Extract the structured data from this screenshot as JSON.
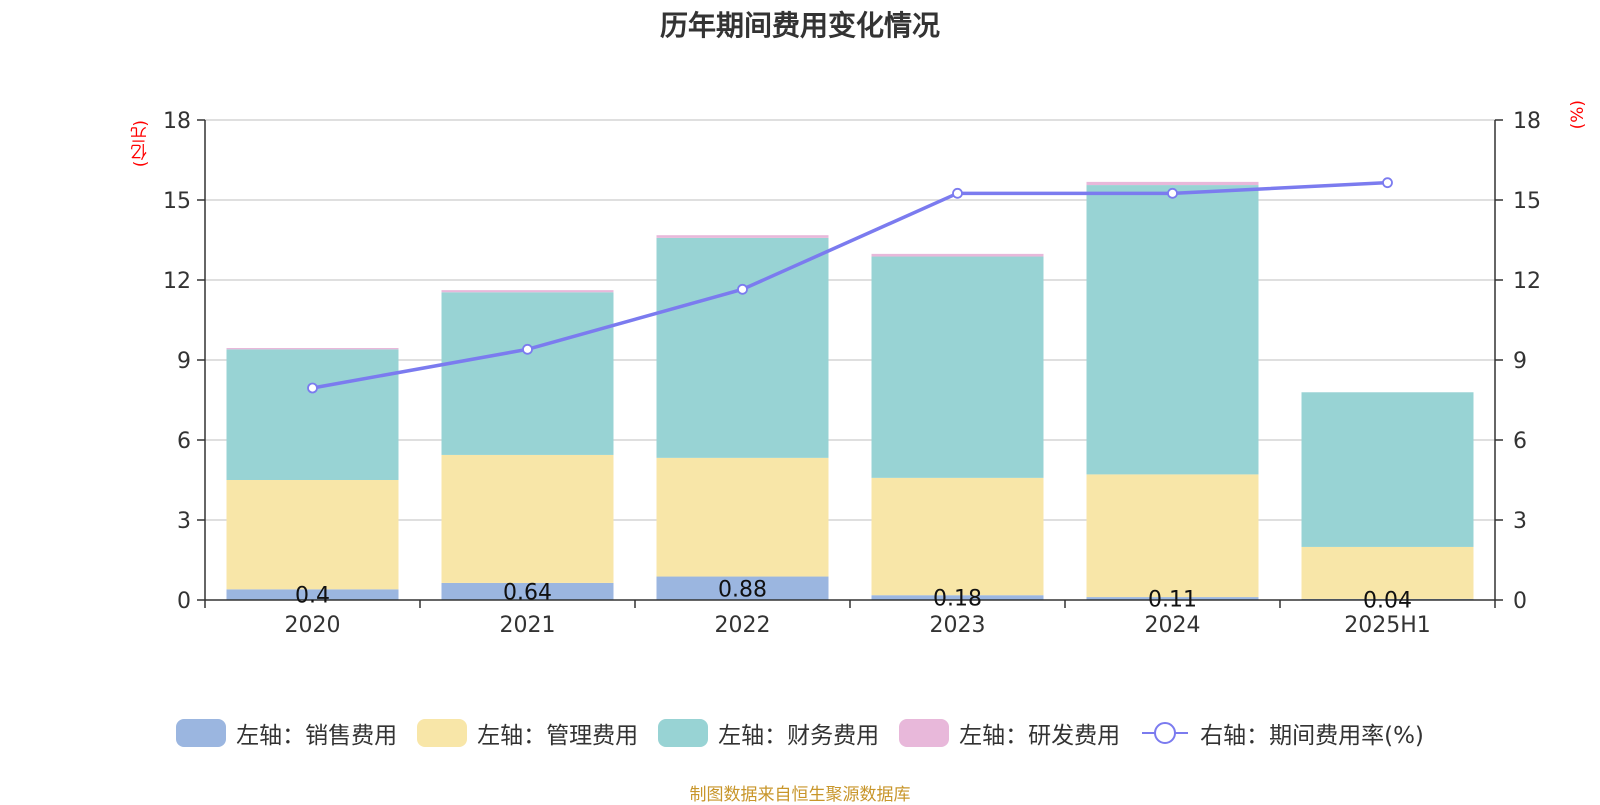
{
  "chart_data": {
    "type": "bar",
    "title": "历年期间费用变化情况",
    "left_axis_unit": "(亿元)",
    "right_axis_unit": "(%)",
    "categories": [
      "2020",
      "2021",
      "2022",
      "2023",
      "2024",
      "2025H1"
    ],
    "ylim_left": [
      0,
      18
    ],
    "ylim_right": [
      0,
      18
    ],
    "yticks": [
      0,
      3,
      6,
      9,
      12,
      15,
      18
    ],
    "grid": true,
    "legend_position": "bottom",
    "series": [
      {
        "name": "左轴：销售费用",
        "kind": "bar",
        "axis": "left",
        "color": "#9bb6e0",
        "values": [
          0.4,
          0.64,
          0.88,
          0.18,
          0.11,
          0.04
        ],
        "data_labels": [
          "0.4",
          "0.64",
          "0.88",
          "0.18",
          "0.11",
          "0.04"
        ]
      },
      {
        "name": "左轴：管理费用",
        "kind": "bar",
        "axis": "left",
        "color": "#f8e6a8",
        "values": [
          4.1,
          4.8,
          4.45,
          4.4,
          4.6,
          1.95
        ]
      },
      {
        "name": "左轴：财务费用",
        "kind": "bar",
        "axis": "left",
        "color": "#98d3d4",
        "values": [
          4.9,
          6.1,
          8.25,
          8.3,
          10.85,
          5.8
        ]
      },
      {
        "name": "左轴：研发费用",
        "kind": "bar",
        "axis": "left",
        "color": "#e8b8da",
        "values": [
          0.05,
          0.08,
          0.1,
          0.1,
          0.12,
          0.0
        ]
      },
      {
        "name": "右轴：期间费用率(%)",
        "kind": "line",
        "axis": "right",
        "color": "#7b7bef",
        "values": [
          7.95,
          9.4,
          11.65,
          15.25,
          15.25,
          15.65
        ]
      }
    ]
  },
  "footer": {
    "source": "制图数据来自恒生聚源数据库"
  }
}
